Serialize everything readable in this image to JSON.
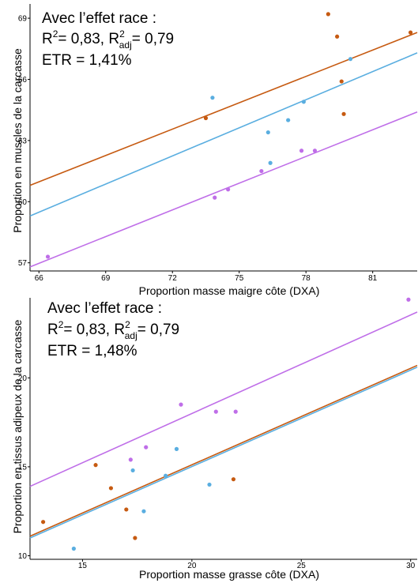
{
  "colors": {
    "orange": "#c65a11",
    "blue": "#5aaee0",
    "purple": "#bf6ee8"
  },
  "chart_data": [
    {
      "type": "scatter",
      "title": "",
      "annotation": {
        "line1": "Avec l’effet race :",
        "r2_label": "R",
        "r2_sup": "2",
        "r2_value": "= 0,83, R",
        "r2adj_sup": "2",
        "r2adj_sub": "adj",
        "r2adj_value": "= 0,79",
        "etr": "ETR = 1,41%"
      },
      "xlabel": "Proportion masse maigre côte (DXA)",
      "ylabel": "Proportion en muscles de la carcasse",
      "xlim": [
        65.6,
        83.0
      ],
      "ylim": [
        56.6,
        69.7
      ],
      "xticks": [
        "66",
        "69",
        "72",
        "75",
        "78",
        "81"
      ],
      "yticks": [
        "57",
        "60",
        "63",
        "66",
        "69"
      ],
      "grid": false,
      "series": [
        {
          "color": "orange",
          "points": [
            [
              73.5,
              64.1
            ],
            [
              79.0,
              69.2
            ],
            [
              79.4,
              68.1
            ],
            [
              79.6,
              65.9
            ],
            [
              79.7,
              64.3
            ],
            [
              82.7,
              68.3
            ]
          ],
          "line": [
            [
              65.6,
              60.8
            ],
            [
              83.0,
              68.3
            ]
          ]
        },
        {
          "color": "blue",
          "points": [
            [
              73.8,
              65.1
            ],
            [
              76.3,
              63.4
            ],
            [
              76.4,
              61.9
            ],
            [
              77.2,
              64.0
            ],
            [
              77.9,
              64.9
            ],
            [
              80.0,
              67.0
            ]
          ],
          "line": [
            [
              65.6,
              59.3
            ],
            [
              83.0,
              67.3
            ]
          ]
        },
        {
          "color": "purple",
          "points": [
            [
              66.4,
              57.3
            ],
            [
              73.9,
              60.2
            ],
            [
              74.5,
              60.6
            ],
            [
              76.0,
              61.5
            ],
            [
              77.8,
              62.5
            ],
            [
              78.4,
              62.5
            ]
          ],
          "line": [
            [
              65.6,
              56.8
            ],
            [
              83.0,
              64.4
            ]
          ]
        }
      ]
    },
    {
      "type": "scatter",
      "title": "",
      "annotation": {
        "line1": "Avec l’effet race :",
        "r2_label": "R",
        "r2_sup": "2",
        "r2_value": "= 0,83, R",
        "r2adj_sup": "2",
        "r2adj_sub": "adj",
        "r2adj_value": "= 0,79",
        "etr": "ETR = 1,48%"
      },
      "xlabel": "Proportion masse grasse côte (DXA)",
      "ylabel": "Proportion en tissus adipeux de la carcasse",
      "xlim": [
        12.6,
        30.3
      ],
      "ylim": [
        9.8,
        24.5
      ],
      "xticks": [
        "15",
        "20",
        "25",
        "30"
      ],
      "yticks": [
        "10",
        "15",
        "20"
      ],
      "grid": false,
      "series": [
        {
          "color": "orange",
          "points": [
            [
              13.2,
              11.9
            ],
            [
              15.6,
              15.1
            ],
            [
              16.3,
              13.8
            ],
            [
              17.0,
              12.6
            ],
            [
              17.4,
              11.0
            ],
            [
              21.9,
              14.3
            ]
          ],
          "line": [
            [
              12.6,
              11.1
            ],
            [
              30.3,
              20.7
            ]
          ]
        },
        {
          "color": "blue",
          "points": [
            [
              14.6,
              10.4
            ],
            [
              17.3,
              14.8
            ],
            [
              17.8,
              12.5
            ],
            [
              18.8,
              14.5
            ],
            [
              19.3,
              16.0
            ],
            [
              20.8,
              14.0
            ]
          ],
          "line": [
            [
              12.6,
              11.0
            ],
            [
              30.3,
              20.6
            ]
          ]
        },
        {
          "color": "purple",
          "points": [
            [
              17.2,
              15.4
            ],
            [
              17.9,
              16.1
            ],
            [
              19.5,
              18.5
            ],
            [
              21.1,
              18.1
            ],
            [
              22.0,
              18.1
            ],
            [
              29.9,
              24.4
            ]
          ],
          "line": [
            [
              12.6,
              13.9
            ],
            [
              30.3,
              23.7
            ]
          ]
        }
      ]
    }
  ]
}
